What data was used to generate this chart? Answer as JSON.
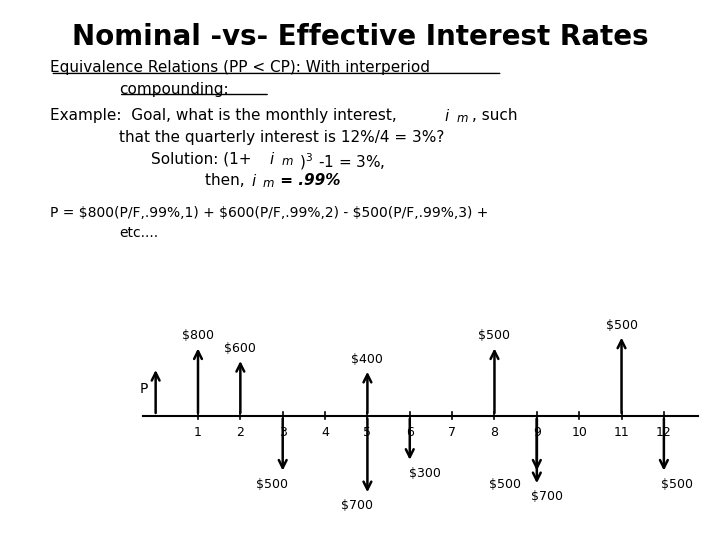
{
  "title": "Nominal -vs- Effective Interest Rates",
  "bg_color": "#ffffff",
  "text_color": "#000000",
  "subtitle_line1": "Equivalence Relations (PP < CP): With interperiod",
  "subtitle_line2": "compounding:",
  "example_line2": "that the quarterly interest is 12%/4 = 3%?",
  "p_formula": "P = $800(P/F,.99%,1) + $600(P/F,.99%,2) - $500(P/F,.99%,3) +",
  "p_formula2": "etc....",
  "tick_labels": [
    "1",
    "2",
    "3",
    "4",
    "5",
    "6",
    "7",
    "8",
    "9",
    "10",
    "11",
    "12"
  ]
}
